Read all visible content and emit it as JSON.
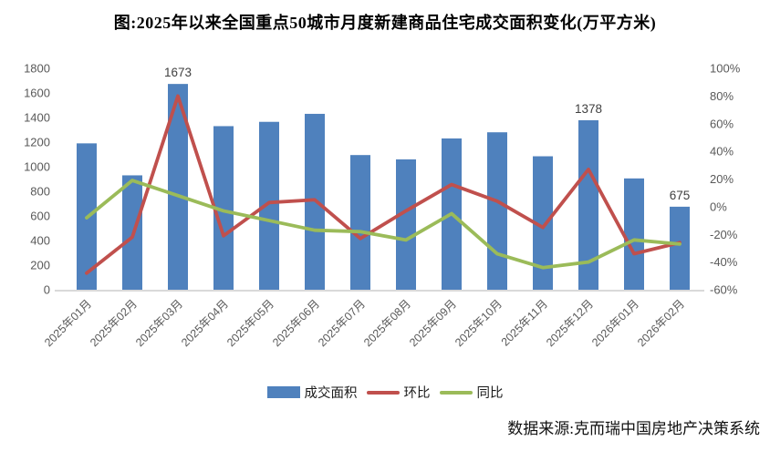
{
  "title": "图:2025年以来全国重点50城市月度新建商品住宅成交面积变化(万平方米)",
  "source": "数据来源:克而瑞中国房地产决策系统",
  "colors": {
    "bar": "#4F81BD",
    "mom_line": "#C0504D",
    "yoy_line": "#9BBB59",
    "axis_line": "#D9D9D9",
    "axis_text": "#595959",
    "data_label": "#404040"
  },
  "legend": {
    "items": [
      {
        "label": "成交面积",
        "type": "bar",
        "color": "#4F81BD"
      },
      {
        "label": "环比",
        "type": "line",
        "color": "#C0504D"
      },
      {
        "label": "同比",
        "type": "line",
        "color": "#9BBB59"
      }
    ]
  },
  "chart_data": {
    "type": "bar",
    "subtype": "combo-bar-line-dual-axis",
    "title": "图:2025年以来全国重点50城市月度新建商品住宅成交面积变化(万平方米)",
    "categories": [
      "2025年01月",
      "2025年02月",
      "2025年03月",
      "2025年04月",
      "2025年05月",
      "2025年06月",
      "2025年07月",
      "2025年08月",
      "2025年09月",
      "2025年10月",
      "2025年11月",
      "2025年12月",
      "2026年01月",
      "2026年02月"
    ],
    "series": [
      {
        "name": "成交面积",
        "type": "bar",
        "axis": "left",
        "color": "#4F81BD",
        "values": [
          1190,
          930,
          1673,
          1330,
          1365,
          1430,
          1095,
          1060,
          1230,
          1280,
          1085,
          1378,
          905,
          675
        ]
      },
      {
        "name": "环比",
        "type": "line",
        "axis": "right",
        "color": "#C0504D",
        "values_percent": [
          -48,
          -22,
          80,
          -21,
          3,
          5,
          -23,
          -3,
          16,
          4,
          -15,
          27,
          -34,
          -26
        ]
      },
      {
        "name": "同比",
        "type": "line",
        "axis": "right",
        "color": "#9BBB59",
        "values_percent": [
          -8,
          19,
          8,
          -3,
          -10,
          -17,
          -18,
          -24,
          -5,
          -34,
          -44,
          -40,
          -24,
          -27
        ]
      }
    ],
    "data_labels": [
      {
        "index": 2,
        "text": "1673"
      },
      {
        "index": 11,
        "text": "1378"
      },
      {
        "index": 13,
        "text": "675"
      }
    ],
    "left_axis": {
      "min": 0,
      "max": 1800,
      "step": 200,
      "tick_labels": [
        "0",
        "200",
        "400",
        "600",
        "800",
        "1000",
        "1200",
        "1400",
        "1600",
        "1800"
      ]
    },
    "right_axis": {
      "min": -60,
      "max": 100,
      "step": 20,
      "tick_labels": [
        "-60%",
        "-40%",
        "-20%",
        "0%",
        "20%",
        "40%",
        "60%",
        "80%",
        "100%"
      ]
    },
    "grid": false,
    "legend_position": "bottom"
  }
}
